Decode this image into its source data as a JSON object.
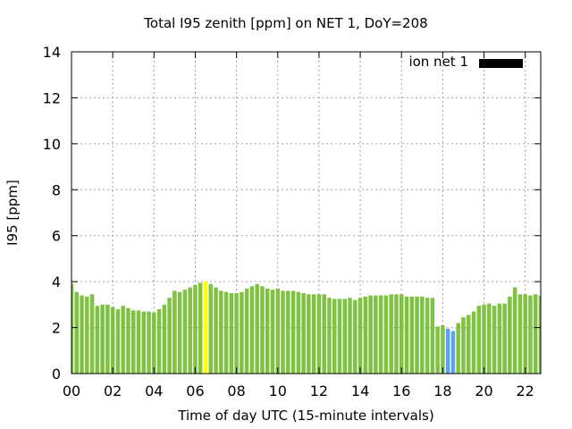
{
  "chart_data": {
    "type": "bar",
    "title": "Total I95 zenith [ppm] on NET 1, DoY=208",
    "xlabel": "Time of day UTC (15-minute intervals)",
    "ylabel": "I95 [ppm]",
    "ylim": [
      0,
      14
    ],
    "yticks": [
      "0",
      "2",
      "4",
      "6",
      "8",
      "10",
      "12",
      "14"
    ],
    "xlim": [
      0,
      22.75
    ],
    "xticks": [
      "00",
      "02",
      "04",
      "06",
      "08",
      "10",
      "12",
      "14",
      "16",
      "18",
      "20",
      "22"
    ],
    "grid": true,
    "legend": {
      "position": "top-right",
      "entries": [
        {
          "label": "ion net 1",
          "color": "#000000"
        }
      ]
    },
    "colors": {
      "default": "#7fc241",
      "highlight_yellow": "#ffff00",
      "highlight_blue": "#5ca0f0"
    },
    "highlight_yellow_index": [
      26
    ],
    "highlight_blue_index": [
      73,
      74
    ],
    "interval_hours": 0.25,
    "values": [
      3.9,
      3.55,
      3.4,
      3.35,
      3.45,
      2.95,
      3.0,
      3.0,
      2.9,
      2.8,
      2.95,
      2.85,
      2.75,
      2.75,
      2.7,
      2.7,
      2.65,
      2.8,
      3.0,
      3.3,
      3.6,
      3.55,
      3.65,
      3.75,
      3.85,
      3.95,
      4.0,
      3.9,
      3.75,
      3.6,
      3.55,
      3.5,
      3.5,
      3.55,
      3.7,
      3.8,
      3.9,
      3.8,
      3.7,
      3.65,
      3.7,
      3.6,
      3.6,
      3.6,
      3.55,
      3.5,
      3.45,
      3.45,
      3.45,
      3.45,
      3.3,
      3.25,
      3.25,
      3.25,
      3.3,
      3.2,
      3.3,
      3.35,
      3.4,
      3.4,
      3.4,
      3.4,
      3.45,
      3.45,
      3.45,
      3.35,
      3.35,
      3.35,
      3.35,
      3.3,
      3.3,
      2.05,
      2.1,
      1.95,
      1.85,
      2.2,
      2.45,
      2.55,
      2.7,
      2.95,
      3.0,
      3.05,
      2.95,
      3.05,
      3.05,
      3.35,
      3.75,
      3.45,
      3.45,
      3.4,
      3.45,
      3.4,
      3.15
    ]
  }
}
